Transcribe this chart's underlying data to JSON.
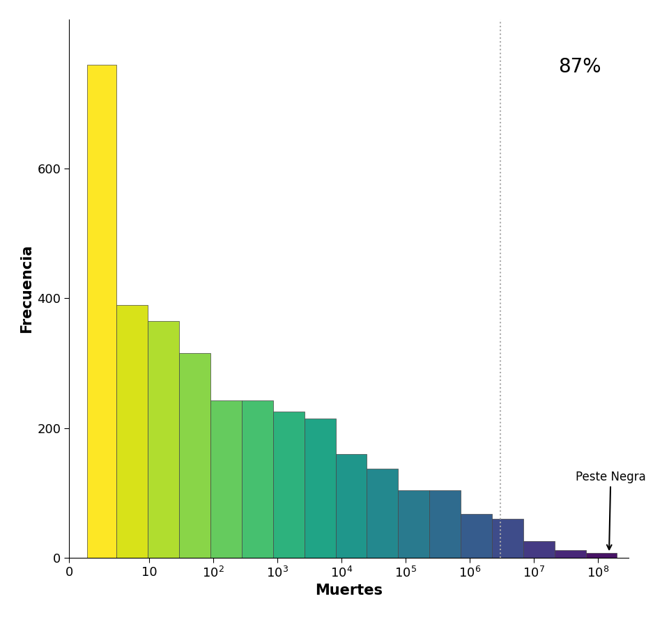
{
  "bar_heights": [
    760,
    390,
    365,
    315,
    242,
    242,
    225,
    215,
    160,
    137,
    104,
    104,
    67,
    60,
    25,
    12,
    7
  ],
  "xlabel": "Muertes",
  "ylabel": "Frecuencia",
  "vline_x": 3000000,
  "annotation_87": "87%",
  "annotation_peste": "Peste Negra",
  "yticks": [
    0,
    200,
    400,
    600
  ],
  "ymax": 830,
  "background_color": "#ffffff",
  "vline_color": "#aaaaaa",
  "bar_edge_color": "#444444",
  "bar_edge_width": 0.5,
  "xlabel_fontsize": 15,
  "ylabel_fontsize": 15,
  "tick_fontsize": 13,
  "pct_fontsize": 20,
  "label_fontsize": 12,
  "linthresh": 2,
  "linscale": 0.5
}
